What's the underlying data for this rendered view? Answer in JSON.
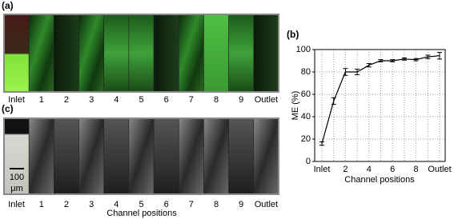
{
  "panels": {
    "a": {
      "label": "(a)",
      "categories": [
        "Inlet",
        "1",
        "2",
        "3",
        "4",
        "5",
        "6",
        "7",
        "8",
        "9",
        "Outlet"
      ]
    },
    "c": {
      "label": "(c)",
      "categories": [
        "Inlet",
        "1",
        "2",
        "3",
        "4",
        "5",
        "6",
        "7",
        "8",
        "9",
        "Outlet"
      ],
      "xlabel": "Channel positions",
      "scale_bar": [
        "100",
        "μm"
      ]
    }
  },
  "chart_data": {
    "type": "line",
    "label": "(b)",
    "ylabel": "ME (%)",
    "xlabel": "Channel positions",
    "categories": [
      "Inlet",
      null,
      "2",
      null,
      "4",
      null,
      "6",
      null,
      "8",
      null,
      "Outlet"
    ],
    "series": [
      {
        "color": "#000000",
        "values": [
          16,
          54,
          80,
          80,
          86,
          90,
          90,
          91.5,
          91,
          93.5,
          94.5
        ],
        "errors": [
          1.5,
          3,
          3,
          2.5,
          1.5,
          1,
          1,
          1,
          1,
          1.5,
          3
        ]
      }
    ],
    "ylim": [
      0,
      100
    ],
    "yticks": [
      0,
      20,
      40,
      60,
      80,
      100
    ],
    "grid": true
  }
}
